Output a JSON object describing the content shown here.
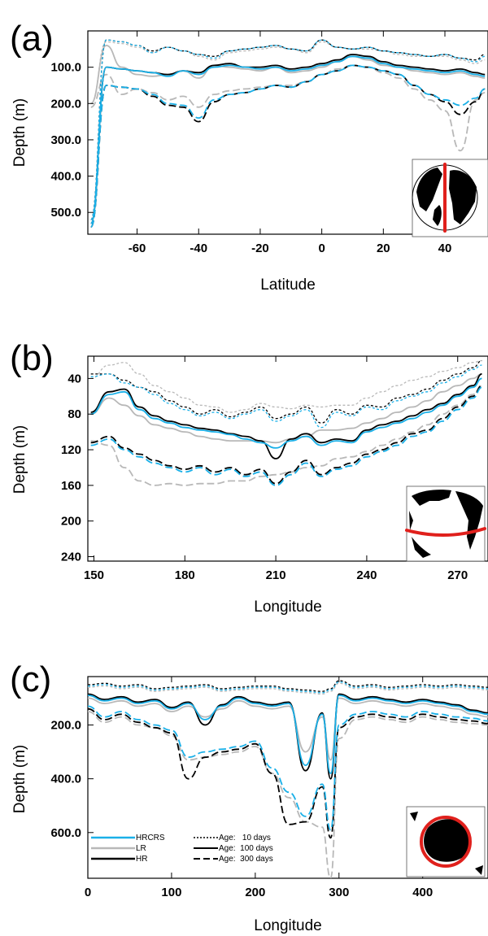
{
  "colors": {
    "HRCRS": "#1ab0e8",
    "LR": "#b8b8b8",
    "HR": "#000000",
    "inset_line": "#e0201c"
  },
  "legend": {
    "models": [
      {
        "key": "HRCRS",
        "label": "HRCRS"
      },
      {
        "key": "LR",
        "label": "LR"
      },
      {
        "key": "HR",
        "label": "HR"
      }
    ],
    "ages": [
      {
        "label": "Age:   10 days",
        "dash": "dotted"
      },
      {
        "label": "Age:  100 days",
        "dash": "solid"
      },
      {
        "label": "Age:  300 days",
        "dash": "dashed"
      }
    ]
  },
  "chart_data": [
    {
      "panel": "(a)",
      "type": "line",
      "xlabel": "Latitude",
      "ylabel": "Depth (m)",
      "xlim": [
        -76,
        54
      ],
      "ylim": [
        0,
        560
      ],
      "y_inverted": true,
      "xticks": [
        -60,
        -40,
        -20,
        0,
        20,
        40
      ],
      "xtick_labels": [
        "-60",
        "-40",
        "-20",
        "0",
        "20",
        "40"
      ],
      "yticks": [
        100,
        200,
        300,
        400,
        500
      ],
      "ytick_labels": [
        "100.0",
        "200.0",
        "300.0",
        "400.0",
        "500.0"
      ],
      "inset": "Atlantic meridional section near 25°W",
      "x": [
        -75,
        -70,
        -65,
        -60,
        -55,
        -50,
        -45,
        -40,
        -35,
        -30,
        -25,
        -20,
        -15,
        -10,
        -5,
        0,
        5,
        10,
        15,
        20,
        25,
        30,
        35,
        40,
        45,
        50,
        53
      ],
      "series": [
        {
          "name": "HRCRS",
          "age": "10 days",
          "values": [
            520,
            25,
            30,
            40,
            60,
            45,
            55,
            65,
            75,
            55,
            50,
            45,
            40,
            50,
            55,
            25,
            45,
            50,
            45,
            55,
            60,
            65,
            70,
            65,
            75,
            85,
            70
          ]
        },
        {
          "name": "HRCRS",
          "age": "100 days",
          "values": [
            530,
            100,
            105,
            110,
            115,
            125,
            110,
            120,
            100,
            95,
            100,
            105,
            100,
            110,
            105,
            95,
            85,
            70,
            75,
            90,
            100,
            105,
            110,
            115,
            110,
            120,
            125
          ]
        },
        {
          "name": "HRCRS",
          "age": "300 days",
          "values": [
            540,
            150,
            155,
            160,
            175,
            200,
            205,
            240,
            190,
            175,
            170,
            160,
            150,
            155,
            140,
            120,
            110,
            95,
            100,
            110,
            120,
            150,
            175,
            190,
            205,
            185,
            160
          ]
        },
        {
          "name": "LR",
          "age": "10 days",
          "values": [
            200,
            30,
            35,
            45,
            60,
            45,
            55,
            70,
            80,
            60,
            55,
            50,
            45,
            50,
            60,
            30,
            45,
            50,
            50,
            55,
            65,
            70,
            70,
            70,
            80,
            90,
            80
          ]
        },
        {
          "name": "LR",
          "age": "100 days",
          "values": [
            200,
            40,
            100,
            120,
            125,
            120,
            110,
            130,
            95,
            100,
            105,
            110,
            100,
            115,
            110,
            100,
            85,
            70,
            80,
            95,
            100,
            110,
            115,
            120,
            115,
            125,
            130
          ]
        },
        {
          "name": "LR",
          "age": "300 days",
          "values": [
            210,
            120,
            175,
            160,
            170,
            190,
            180,
            210,
            175,
            165,
            160,
            155,
            150,
            150,
            140,
            120,
            105,
            95,
            100,
            115,
            130,
            160,
            190,
            220,
            330,
            190,
            170
          ]
        },
        {
          "name": "HR",
          "age": "10 days",
          "values": [
            520,
            25,
            30,
            40,
            55,
            45,
            55,
            65,
            70,
            55,
            50,
            45,
            40,
            50,
            55,
            25,
            45,
            50,
            45,
            55,
            60,
            65,
            70,
            65,
            75,
            80,
            65
          ]
        },
        {
          "name": "HR",
          "age": "100 days",
          "values": [
            530,
            100,
            105,
            110,
            115,
            120,
            110,
            115,
            95,
            90,
            100,
            100,
            95,
            105,
            100,
            90,
            80,
            65,
            70,
            85,
            95,
            100,
            105,
            110,
            105,
            115,
            120
          ]
        },
        {
          "name": "HR",
          "age": "300 days",
          "values": [
            540,
            150,
            155,
            160,
            180,
            205,
            210,
            250,
            195,
            175,
            170,
            160,
            150,
            155,
            140,
            120,
            110,
            95,
            100,
            110,
            120,
            150,
            175,
            195,
            230,
            195,
            160
          ]
        }
      ]
    },
    {
      "panel": "(b)",
      "type": "line",
      "xlabel": "Longitude",
      "ylabel": "Depth (m)",
      "xlim": [
        148,
        280
      ],
      "ylim": [
        15,
        245
      ],
      "y_inverted": true,
      "xticks": [
        150,
        180,
        210,
        240,
        270
      ],
      "xtick_labels": [
        "150",
        "180",
        "210",
        "240",
        "270"
      ],
      "yticks": [
        40,
        80,
        120,
        160,
        200,
        240
      ],
      "ytick_labels": [
        "40",
        "80",
        "120",
        "160",
        "200",
        "240"
      ],
      "inset": "Equatorial Pacific zonal section",
      "x": [
        149,
        155,
        160,
        165,
        170,
        175,
        180,
        185,
        190,
        195,
        200,
        205,
        210,
        215,
        220,
        225,
        230,
        235,
        240,
        245,
        250,
        255,
        260,
        265,
        270,
        275,
        278
      ],
      "series": [
        {
          "name": "HRCRS",
          "age": "10 days",
          "values": [
            38,
            35,
            45,
            50,
            58,
            68,
            75,
            82,
            78,
            85,
            80,
            75,
            88,
            82,
            75,
            95,
            78,
            82,
            72,
            75,
            65,
            60,
            55,
            45,
            38,
            30,
            25
          ]
        },
        {
          "name": "HRCRS",
          "age": "100 days",
          "values": [
            80,
            58,
            55,
            75,
            85,
            90,
            95,
            98,
            100,
            103,
            108,
            112,
            118,
            110,
            105,
            115,
            110,
            112,
            100,
            95,
            90,
            85,
            78,
            70,
            60,
            50,
            40
          ]
        },
        {
          "name": "HRCRS",
          "age": "300 days",
          "values": [
            115,
            108,
            120,
            128,
            135,
            140,
            145,
            140,
            148,
            142,
            150,
            145,
            160,
            148,
            135,
            150,
            142,
            138,
            128,
            122,
            115,
            105,
            100,
            88,
            75,
            62,
            50
          ]
        },
        {
          "name": "LR",
          "age": "10 days",
          "values": [
            40,
            25,
            22,
            35,
            48,
            55,
            62,
            70,
            72,
            78,
            75,
            68,
            72,
            74,
            70,
            72,
            70,
            70,
            62,
            55,
            48,
            42,
            38,
            32,
            28,
            22,
            20
          ]
        },
        {
          "name": "LR",
          "age": "100 days",
          "values": [
            80,
            62,
            70,
            82,
            92,
            96,
            100,
            105,
            108,
            110,
            110,
            110,
            112,
            108,
            105,
            98,
            98,
            96,
            90,
            85,
            78,
            72,
            65,
            55,
            48,
            40,
            35
          ]
        },
        {
          "name": "LR",
          "age": "300 days",
          "values": [
            110,
            115,
            140,
            155,
            160,
            158,
            160,
            158,
            158,
            155,
            155,
            150,
            148,
            145,
            140,
            138,
            130,
            128,
            122,
            115,
            108,
            100,
            92,
            80,
            70,
            58,
            48
          ]
        },
        {
          "name": "HR",
          "age": "10 days",
          "values": [
            35,
            35,
            42,
            50,
            55,
            65,
            72,
            80,
            75,
            83,
            78,
            72,
            85,
            80,
            72,
            90,
            75,
            80,
            70,
            72,
            62,
            58,
            52,
            42,
            35,
            28,
            20
          ]
        },
        {
          "name": "HR",
          "age": "100 days",
          "values": [
            78,
            55,
            52,
            72,
            82,
            88,
            92,
            96,
            98,
            102,
            105,
            110,
            130,
            108,
            102,
            112,
            108,
            110,
            98,
            92,
            88,
            82,
            75,
            68,
            58,
            48,
            35
          ]
        },
        {
          "name": "HR",
          "age": "300 days",
          "values": [
            112,
            105,
            118,
            125,
            132,
            138,
            142,
            138,
            145,
            140,
            148,
            142,
            158,
            145,
            132,
            148,
            140,
            135,
            125,
            120,
            112,
            102,
            98,
            85,
            72,
            60,
            48
          ]
        }
      ]
    },
    {
      "panel": "(c)",
      "type": "line",
      "xlabel": "Longitude",
      "ylabel": "Depth (m)",
      "xlim": [
        0,
        478
      ],
      "ylim": [
        20,
        770
      ],
      "y_inverted": true,
      "xticks": [
        0,
        100,
        200,
        300,
        400
      ],
      "xtick_labels": [
        "0",
        "100",
        "200",
        "300",
        "400"
      ],
      "yticks": [
        200,
        400,
        600
      ],
      "ytick_labels": [
        "200.0",
        "400.0",
        "600.0"
      ],
      "inset": "Southern Ocean circumpolar section",
      "x": [
        0,
        20,
        40,
        60,
        80,
        100,
        120,
        140,
        160,
        180,
        200,
        220,
        240,
        260,
        280,
        290,
        300,
        320,
        340,
        360,
        380,
        400,
        420,
        440,
        460,
        478
      ],
      "series": [
        {
          "name": "HRCRS",
          "age": "10 days",
          "values": [
            55,
            50,
            60,
            55,
            70,
            65,
            60,
            55,
            70,
            65,
            60,
            60,
            70,
            75,
            80,
            70,
            40,
            60,
            55,
            65,
            60,
            55,
            60,
            55,
            60,
            65
          ]
        },
        {
          "name": "HRCRS",
          "age": "100 days",
          "values": [
            90,
            110,
            100,
            120,
            110,
            140,
            120,
            180,
            130,
            100,
            120,
            130,
            120,
            350,
            160,
            380,
            90,
            110,
            100,
            110,
            120,
            110,
            120,
            130,
            150,
            160
          ]
        },
        {
          "name": "HRCRS",
          "age": "300 days",
          "values": [
            130,
            170,
            150,
            180,
            200,
            220,
            320,
            300,
            290,
            280,
            260,
            360,
            450,
            540,
            420,
            590,
            200,
            160,
            150,
            160,
            170,
            150,
            160,
            170,
            175,
            185
          ]
        },
        {
          "name": "LR",
          "age": "10 days",
          "values": [
            60,
            55,
            65,
            60,
            75,
            70,
            65,
            60,
            75,
            70,
            65,
            65,
            75,
            80,
            85,
            75,
            45,
            65,
            60,
            70,
            65,
            60,
            65,
            60,
            65,
            70
          ]
        },
        {
          "name": "LR",
          "age": "100 days",
          "values": [
            100,
            120,
            110,
            130,
            120,
            150,
            130,
            170,
            140,
            110,
            130,
            140,
            130,
            300,
            170,
            330,
            100,
            120,
            110,
            120,
            130,
            120,
            130,
            140,
            160,
            170
          ]
        },
        {
          "name": "LR",
          "age": "300 days",
          "values": [
            150,
            190,
            170,
            200,
            210,
            240,
            330,
            320,
            310,
            300,
            280,
            380,
            470,
            560,
            580,
            770,
            250,
            180,
            170,
            180,
            190,
            170,
            180,
            190,
            195,
            200
          ]
        },
        {
          "name": "HR",
          "age": "10 days",
          "values": [
            50,
            45,
            55,
            50,
            65,
            60,
            55,
            50,
            65,
            60,
            55,
            55,
            65,
            70,
            75,
            65,
            35,
            55,
            50,
            60,
            55,
            50,
            55,
            50,
            55,
            60
          ]
        },
        {
          "name": "HR",
          "age": "100 days",
          "values": [
            85,
            105,
            95,
            115,
            105,
            135,
            115,
            200,
            125,
            95,
            115,
            125,
            115,
            370,
            155,
            400,
            85,
            105,
            95,
            105,
            115,
            105,
            115,
            125,
            145,
            155
          ]
        },
        {
          "name": "HR",
          "age": "300 days",
          "values": [
            140,
            180,
            160,
            190,
            210,
            230,
            400,
            320,
            300,
            290,
            270,
            380,
            570,
            560,
            430,
            620,
            210,
            170,
            160,
            170,
            180,
            160,
            170,
            180,
            185,
            195
          ]
        }
      ]
    }
  ]
}
